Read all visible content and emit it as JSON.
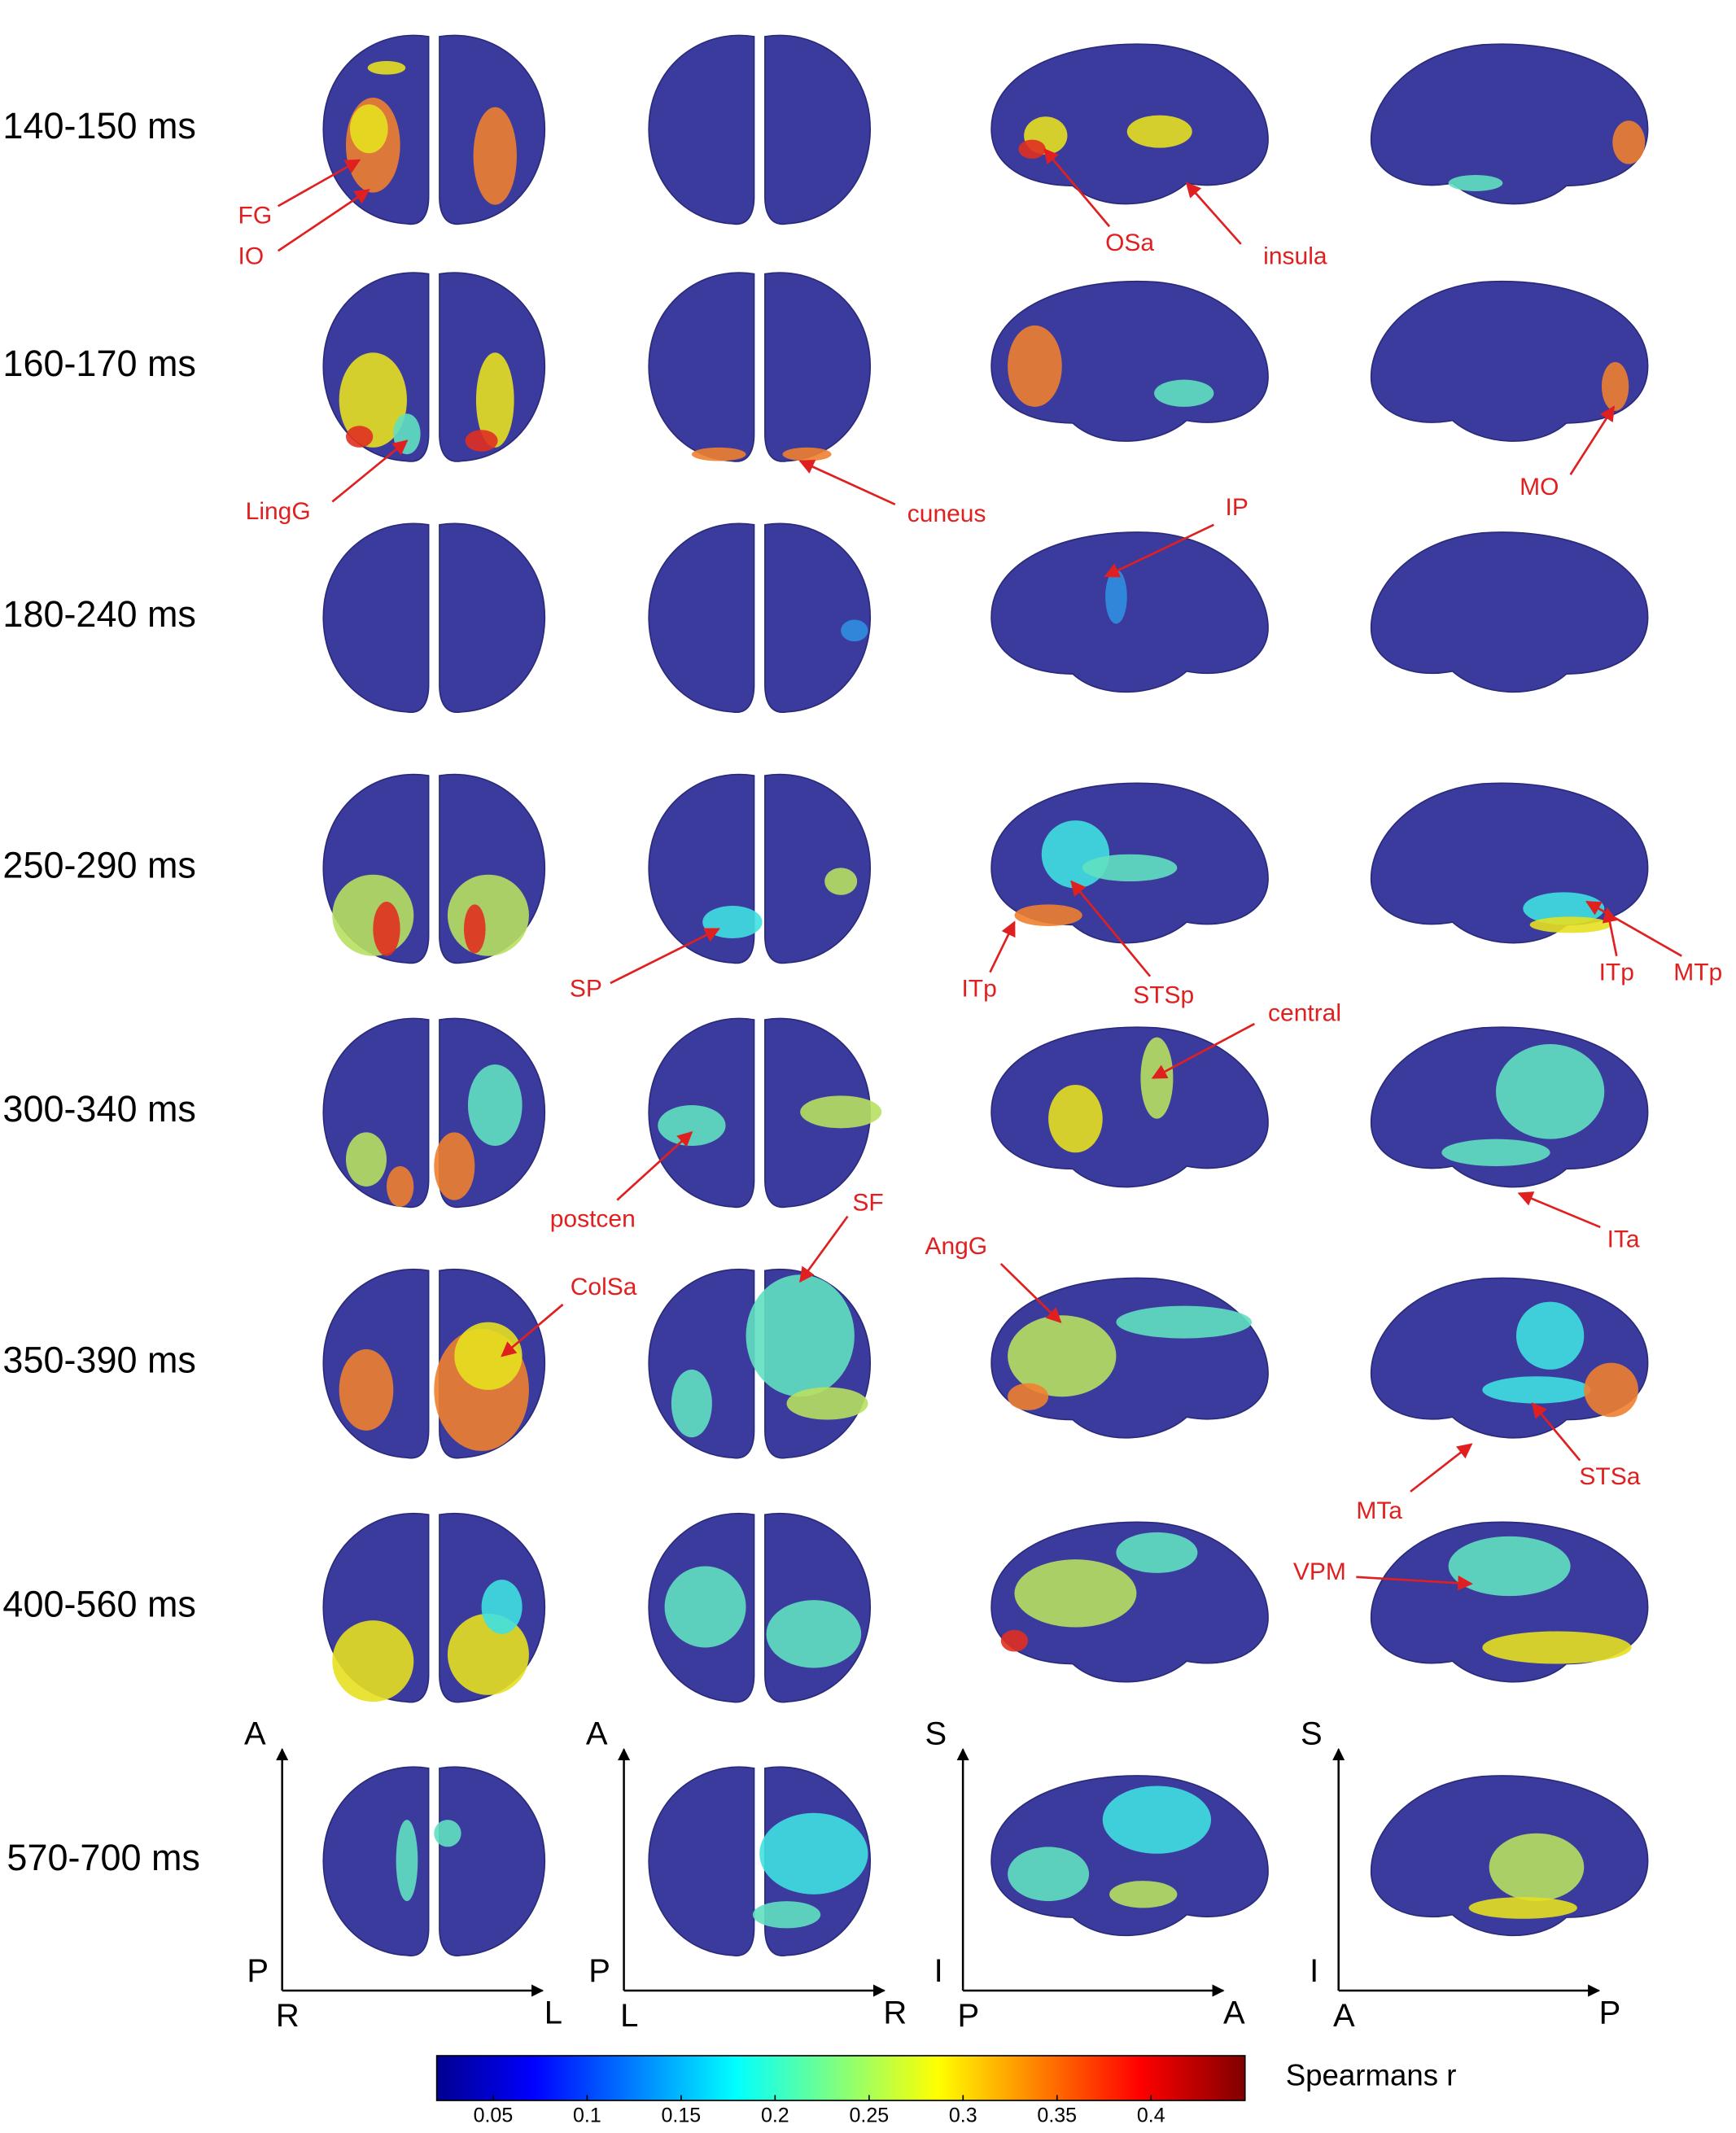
{
  "rows": [
    "140-150 ms",
    "160-170 ms",
    "180-240 ms",
    "250-290 ms",
    "300-340 ms",
    "350-390 ms",
    "400-560 ms",
    "570-700 ms"
  ],
  "annotations": [
    "FG",
    "IO",
    "OSa",
    "insula",
    "LingG",
    "cuneus",
    "MO",
    "IP",
    "SP",
    "ITp",
    "STSp",
    "ITp",
    "MTp",
    "central",
    "postcen",
    "ITa",
    "SF",
    "AngG",
    "ColSa",
    "STSa",
    "MTa",
    "VPM"
  ],
  "orientation": [
    {
      "up": "A",
      "down": "P",
      "left": "R",
      "right": "L"
    },
    {
      "up": "A",
      "down": "P",
      "left": "L",
      "right": "R"
    },
    {
      "up": "S",
      "down": "I",
      "left": "P",
      "right": "A"
    },
    {
      "up": "S",
      "down": "I",
      "left": "A",
      "right": "P"
    }
  ],
  "colorbar": {
    "label": "Spearmans r",
    "range": [
      0.02,
      0.45
    ],
    "ticks": [
      0.05,
      0.1,
      0.15,
      0.2,
      0.25,
      0.3,
      0.35,
      0.4
    ]
  }
}
